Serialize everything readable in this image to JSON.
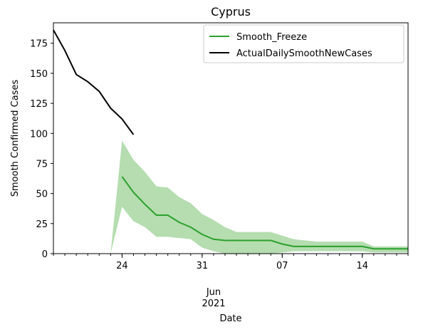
{
  "chart_data": {
    "type": "line",
    "title": "Cyprus",
    "xlabel": "Date",
    "ylabel": "Smooth Confirmed Cases",
    "xlim": [
      "2021-05-18",
      "2021-06-18"
    ],
    "ylim": [
      0,
      192
    ],
    "yticks": [
      0,
      25,
      50,
      75,
      100,
      125,
      150,
      175
    ],
    "xticks": [
      {
        "date": "2021-05-24",
        "label": "24"
      },
      {
        "date": "2021-05-31",
        "label": "31"
      },
      {
        "date": "2021-06-07",
        "label": "07"
      },
      {
        "date": "2021-06-14",
        "label": "14"
      }
    ],
    "xtick_month_label": "Jun",
    "xtick_year_label": "2021",
    "legend_position": "top-right",
    "series": [
      {
        "name": "Smooth_Freeze",
        "color": "#2ca02c",
        "x": [
          "2021-05-24",
          "2021-05-25",
          "2021-05-26",
          "2021-05-27",
          "2021-05-28",
          "2021-05-29",
          "2021-05-30",
          "2021-05-31",
          "2021-06-01",
          "2021-06-02",
          "2021-06-03",
          "2021-06-04",
          "2021-06-05",
          "2021-06-06",
          "2021-06-07",
          "2021-06-08",
          "2021-06-09",
          "2021-06-10",
          "2021-06-11",
          "2021-06-12",
          "2021-06-13",
          "2021-06-14",
          "2021-06-15",
          "2021-06-16",
          "2021-06-17",
          "2021-06-18"
        ],
        "y": [
          64,
          51,
          41,
          32,
          32,
          26,
          22,
          16,
          12,
          11,
          11,
          11,
          11,
          11,
          8,
          6,
          6,
          6,
          6,
          6,
          6,
          6,
          4,
          4,
          4,
          4
        ]
      },
      {
        "name": "ActualDailySmoothNewCases",
        "color": "#000000",
        "x": [
          "2021-05-18",
          "2021-05-19",
          "2021-05-20",
          "2021-05-21",
          "2021-05-22",
          "2021-05-23",
          "2021-05-24",
          "2021-05-25"
        ],
        "y": [
          186,
          169,
          149,
          143,
          135,
          121,
          112,
          99
        ]
      }
    ],
    "band": {
      "series": "Smooth_Freeze",
      "color": "#b5ddb0",
      "x": [
        "2021-05-23",
        "2021-05-24",
        "2021-05-25",
        "2021-05-26",
        "2021-05-27",
        "2021-05-28",
        "2021-05-29",
        "2021-05-30",
        "2021-05-31",
        "2021-06-01",
        "2021-06-02",
        "2021-06-03",
        "2021-06-04",
        "2021-06-05",
        "2021-06-06",
        "2021-06-07",
        "2021-06-08",
        "2021-06-09",
        "2021-06-10",
        "2021-06-11",
        "2021-06-12",
        "2021-06-13",
        "2021-06-14",
        "2021-06-15",
        "2021-06-16",
        "2021-06-17",
        "2021-06-18"
      ],
      "lower": [
        0,
        39,
        27,
        22,
        14,
        14,
        13,
        12,
        5,
        2,
        0,
        0,
        0,
        0,
        0,
        1,
        2,
        2,
        2,
        2,
        2,
        2,
        2,
        1,
        1,
        1,
        1
      ],
      "upper": [
        0,
        94,
        78,
        68,
        56,
        55,
        47,
        42,
        33,
        28,
        22,
        18,
        18,
        18,
        18,
        15,
        12,
        11,
        10,
        10,
        10,
        10,
        10,
        6,
        6,
        6,
        6
      ]
    }
  }
}
